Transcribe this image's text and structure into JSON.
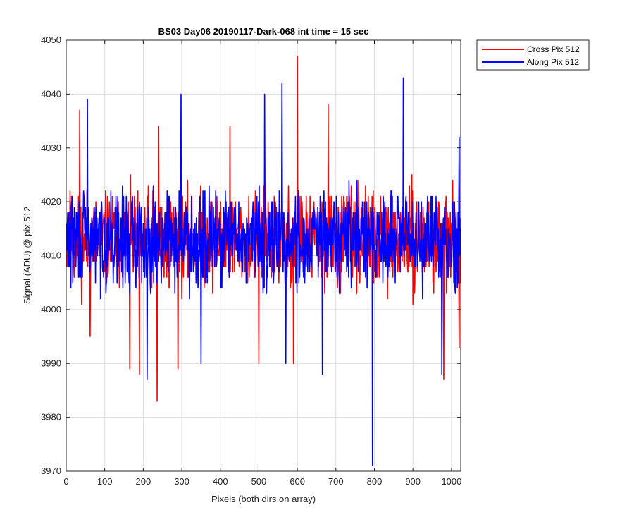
{
  "chart_data": {
    "type": "line",
    "title": "BS03 Day06 20190117-Dark-068 int time = 15 sec",
    "xlabel": "Pixels (both dirs on array)",
    "ylabel": "Signal (ADU) @ pix 512",
    "xlim": [
      0,
      1024
    ],
    "ylim": [
      3970,
      4050
    ],
    "xticks": [
      0,
      100,
      200,
      300,
      400,
      500,
      600,
      700,
      800,
      900,
      1000
    ],
    "yticks": [
      3970,
      3980,
      3990,
      4000,
      4010,
      4020,
      4030,
      4040,
      4050
    ],
    "grid": true,
    "legend_position": "outside-top-right",
    "series": [
      {
        "name": "Cross Pix 512",
        "color": "#ff0000",
        "noise": {
          "count": 1024,
          "mean": 4013,
          "amplitude": 8,
          "seed": 11
        },
        "extremes": [
          {
            "x": 35,
            "y": 4037
          },
          {
            "x": 62,
            "y": 3995
          },
          {
            "x": 165,
            "y": 3989
          },
          {
            "x": 190,
            "y": 3988
          },
          {
            "x": 236,
            "y": 3983
          },
          {
            "x": 240,
            "y": 4034
          },
          {
            "x": 290,
            "y": 3989
          },
          {
            "x": 425,
            "y": 4034
          },
          {
            "x": 500,
            "y": 3990
          },
          {
            "x": 590,
            "y": 3990
          },
          {
            "x": 600,
            "y": 4047
          },
          {
            "x": 680,
            "y": 4038
          },
          {
            "x": 980,
            "y": 3987
          },
          {
            "x": 1020,
            "y": 3993
          }
        ]
      },
      {
        "name": "Along Pix 512",
        "color": "#0000ff",
        "noise": {
          "count": 1024,
          "mean": 4013,
          "amplitude": 8,
          "seed": 29
        },
        "extremes": [
          {
            "x": 55,
            "y": 4039
          },
          {
            "x": 210,
            "y": 3987
          },
          {
            "x": 298,
            "y": 4040
          },
          {
            "x": 350,
            "y": 3990
          },
          {
            "x": 515,
            "y": 4040
          },
          {
            "x": 560,
            "y": 4042
          },
          {
            "x": 570,
            "y": 3990
          },
          {
            "x": 665,
            "y": 3988
          },
          {
            "x": 795,
            "y": 3971
          },
          {
            "x": 875,
            "y": 4043
          },
          {
            "x": 975,
            "y": 3988
          },
          {
            "x": 1020,
            "y": 4032
          }
        ]
      }
    ]
  }
}
